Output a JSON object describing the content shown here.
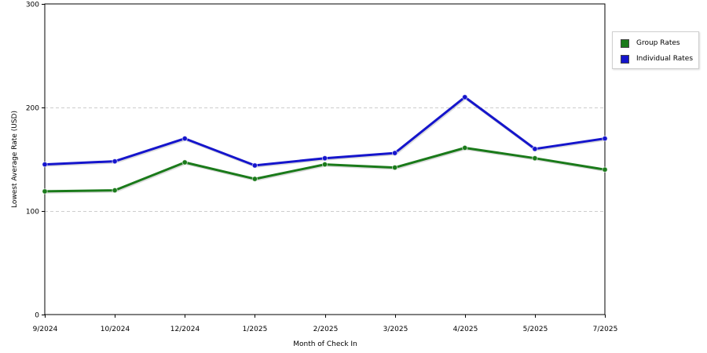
{
  "chart_data": {
    "type": "line",
    "xlabel": "Month of Check In",
    "ylabel": "Lowest Average Rate (USD)",
    "categories": [
      "9/2024",
      "10/2024",
      "12/2024",
      "1/2025",
      "2/2025",
      "3/2025",
      "4/2025",
      "5/2025",
      "7/2025"
    ],
    "ylim": [
      0,
      300
    ],
    "yticks": [
      0,
      100,
      200,
      300
    ],
    "grid": "horizontal dashed",
    "legend_position": "top-right",
    "series": [
      {
        "name": "Group Rates",
        "color": "#1a7a1a",
        "values": [
          119,
          120,
          147,
          131,
          145,
          142,
          161,
          151,
          140
        ]
      },
      {
        "name": "Individual Rates",
        "color": "#1515cc",
        "values": [
          145,
          148,
          170,
          144,
          151,
          156,
          210,
          160,
          170
        ]
      }
    ]
  }
}
